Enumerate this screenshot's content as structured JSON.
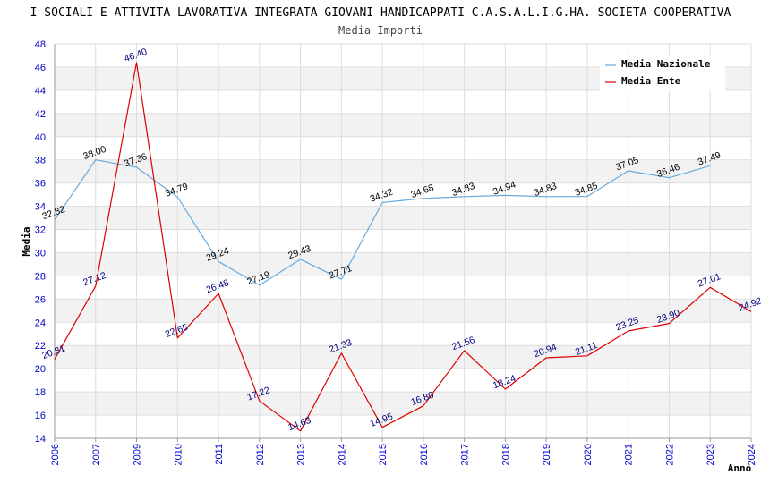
{
  "chart_data": {
    "type": "line",
    "title": "I SOCIALI E ATTIVITA LAVORATIVA INTEGRATA GIOVANI HANDICAPPATI C.A.S.A.L.I.G.HA. SOCIETA COOPERATIVA",
    "subtitle": "Media Importi",
    "xlabel": "Anno",
    "ylabel": "Media",
    "ylim": [
      14,
      48
    ],
    "yticks": [
      14,
      16,
      18,
      20,
      22,
      24,
      26,
      28,
      30,
      32,
      34,
      36,
      38,
      40,
      42,
      44,
      46,
      48
    ],
    "categories": [
      "2006",
      "2007",
      "2009",
      "2010",
      "2011",
      "2012",
      "2013",
      "2014",
      "2015",
      "2016",
      "2017",
      "2018",
      "2019",
      "2020",
      "2021",
      "2022",
      "2023",
      "2024"
    ],
    "grid": true,
    "legend_position": "top-right",
    "series": [
      {
        "name": "Media Nazionale",
        "color": "#66aadd",
        "label_color": "#000000",
        "values": [
          32.82,
          38.0,
          37.36,
          34.79,
          29.24,
          27.19,
          29.43,
          27.71,
          34.32,
          34.68,
          34.83,
          34.94,
          34.83,
          34.85,
          37.05,
          36.46,
          37.49,
          null
        ],
        "labels": [
          "32.82",
          "38.00",
          "37.36",
          "34.79",
          "29.24",
          "27.19",
          "29.43",
          "27.71",
          "34.32",
          "34.68",
          "34.83",
          "34.94",
          "34.83",
          "34.85",
          "37.05",
          "36.46",
          "37.49",
          ""
        ]
      },
      {
        "name": "Media Ente",
        "color": "#dd0000",
        "label_color": "#000080",
        "values": [
          20.81,
          27.12,
          46.4,
          22.65,
          26.48,
          17.22,
          14.63,
          21.33,
          14.95,
          16.8,
          21.56,
          18.24,
          20.94,
          21.11,
          23.25,
          23.9,
          27.01,
          24.92
        ],
        "labels": [
          "20.81",
          "27.12",
          "46.40",
          "22.65",
          "26.48",
          "17.22",
          "14.63",
          "21.33",
          "14.95",
          "16.80",
          "21.56",
          "18.24",
          "20.94",
          "21.11",
          "23.25",
          "23.90",
          "27.01",
          "24.92"
        ]
      }
    ]
  }
}
